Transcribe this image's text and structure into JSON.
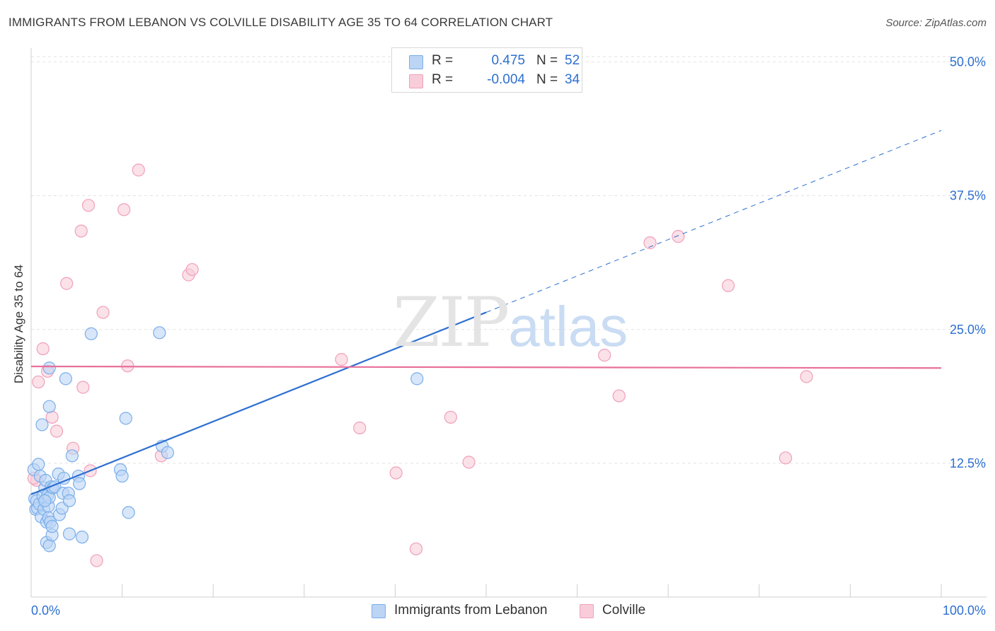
{
  "header": {
    "title": "IMMIGRANTS FROM LEBANON VS COLVILLE DISABILITY AGE 35 TO 64 CORRELATION CHART",
    "source": "Source: ZipAtlas.com"
  },
  "watermark": {
    "zip": "ZIP",
    "atlas": "atlas"
  },
  "legend": {
    "series": [
      {
        "r_label": "R =",
        "r_value": "0.475",
        "n_label": "N =",
        "n_value": "52",
        "color": "#7aaeea",
        "fill": "#bcd5f5"
      },
      {
        "r_label": "R =",
        "r_value": "-0.004",
        "n_label": "N =",
        "n_value": "34",
        "color": "#f0a0ba",
        "fill": "#f8cdd9"
      }
    ],
    "bottom": [
      "Immigrants from Lebanon",
      "Colville"
    ]
  },
  "chart_data": {
    "type": "scatter",
    "title": "IMMIGRANTS FROM LEBANON VS COLVILLE DISABILITY AGE 35 TO 64 CORRELATION CHART",
    "xlabel": "",
    "ylabel": "Disability Age 35 to 64",
    "xlim": [
      0,
      100
    ],
    "ylim": [
      0,
      50.5
    ],
    "x_tick_labels": [
      "0.0%",
      "100.0%"
    ],
    "y_ticks": [
      12.5,
      25.0,
      37.5,
      50.0
    ],
    "y_tick_labels": [
      "12.5%",
      "25.0%",
      "37.5%",
      "50.0%"
    ],
    "grid": true,
    "series": [
      {
        "name": "Immigrants from Lebanon",
        "color": "#2d6fd1",
        "marker_fill": "#bcd5f5",
        "marker_edge": "#7aaeea",
        "points": [
          [
            0.3,
            11.9
          ],
          [
            0.4,
            9.2
          ],
          [
            0.5,
            8.2
          ],
          [
            0.6,
            9.0
          ],
          [
            0.7,
            8.3
          ],
          [
            0.8,
            12.4
          ],
          [
            0.9,
            8.7
          ],
          [
            1.0,
            11.3
          ],
          [
            1.1,
            7.5
          ],
          [
            1.2,
            16.1
          ],
          [
            1.3,
            9.4
          ],
          [
            1.4,
            8.2
          ],
          [
            1.5,
            10.2
          ],
          [
            1.6,
            10.9
          ],
          [
            1.7,
            7.0
          ],
          [
            1.7,
            5.1
          ],
          [
            1.8,
            9.5
          ],
          [
            1.9,
            8.5
          ],
          [
            1.9,
            7.4
          ],
          [
            2.0,
            4.8
          ],
          [
            2.0,
            21.4
          ],
          [
            2.0,
            17.8
          ],
          [
            2.0,
            9.3
          ],
          [
            2.1,
            7.0
          ],
          [
            2.2,
            10.3
          ],
          [
            2.3,
            5.8
          ],
          [
            2.3,
            6.6
          ],
          [
            2.4,
            10.2
          ],
          [
            2.6,
            10.3
          ],
          [
            3.0,
            11.5
          ],
          [
            3.1,
            7.7
          ],
          [
            3.4,
            8.3
          ],
          [
            3.5,
            9.7
          ],
          [
            3.6,
            11.1
          ],
          [
            3.8,
            20.4
          ],
          [
            4.1,
            9.7
          ],
          [
            4.2,
            9.0
          ],
          [
            4.2,
            5.9
          ],
          [
            4.5,
            13.2
          ],
          [
            5.2,
            11.3
          ],
          [
            5.3,
            10.6
          ],
          [
            5.6,
            5.6
          ],
          [
            6.6,
            24.6
          ],
          [
            9.8,
            11.9
          ],
          [
            10.0,
            11.3
          ],
          [
            10.4,
            16.7
          ],
          [
            10.7,
            7.9
          ],
          [
            14.1,
            24.7
          ],
          [
            14.4,
            14.1
          ],
          [
            15.0,
            13.5
          ],
          [
            42.4,
            20.4
          ],
          [
            1.5,
            9.0
          ]
        ]
      },
      {
        "name": "Colville",
        "color": "#e8709a",
        "marker_fill": "#f8cdd9",
        "marker_edge": "#f0a0ba",
        "points": [
          [
            0.6,
            10.9
          ],
          [
            0.8,
            20.1
          ],
          [
            1.3,
            23.2
          ],
          [
            1.8,
            21.1
          ],
          [
            2.3,
            16.8
          ],
          [
            2.8,
            15.5
          ],
          [
            3.9,
            29.3
          ],
          [
            4.6,
            13.9
          ],
          [
            5.5,
            34.2
          ],
          [
            5.7,
            19.6
          ],
          [
            6.3,
            36.6
          ],
          [
            6.5,
            11.8
          ],
          [
            7.2,
            3.4
          ],
          [
            7.9,
            26.6
          ],
          [
            10.2,
            36.2
          ],
          [
            10.6,
            21.6
          ],
          [
            11.8,
            39.9
          ],
          [
            14.3,
            13.2
          ],
          [
            17.3,
            30.1
          ],
          [
            17.7,
            30.6
          ],
          [
            34.1,
            22.2
          ],
          [
            36.1,
            15.8
          ],
          [
            40.1,
            11.6
          ],
          [
            42.3,
            4.5
          ],
          [
            46.1,
            16.8
          ],
          [
            48.1,
            12.6
          ],
          [
            63.0,
            22.6
          ],
          [
            64.6,
            18.8
          ],
          [
            68.0,
            33.1
          ],
          [
            71.1,
            33.7
          ],
          [
            76.6,
            29.1
          ],
          [
            82.9,
            13.0
          ],
          [
            85.2,
            20.6
          ],
          [
            0.3,
            11.1
          ]
        ]
      }
    ],
    "trend_lines": [
      {
        "series": "Immigrants from Lebanon",
        "style": "solid",
        "x": [
          0,
          50
        ],
        "y": [
          9.6,
          26.6
        ]
      },
      {
        "series": "Immigrants from Lebanon",
        "style": "dashed",
        "x": [
          50,
          100
        ],
        "y": [
          26.6,
          43.6
        ]
      },
      {
        "series": "Colville",
        "style": "solid",
        "x": [
          0,
          100
        ],
        "y": [
          21.55,
          21.4
        ]
      }
    ]
  }
}
